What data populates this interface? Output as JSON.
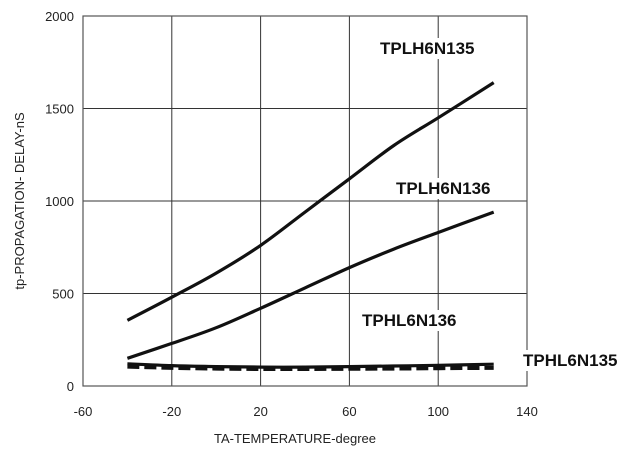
{
  "chart_data": {
    "type": "line",
    "title": "",
    "xlabel": "TA-TEMPERATURE-degree",
    "ylabel": "tp-PROPAGATION- DELAY-nS",
    "xlim": [
      -60,
      140
    ],
    "ylim": [
      0,
      2000
    ],
    "xticks": [
      -60,
      -20,
      20,
      60,
      100,
      140
    ],
    "yticks": [
      0,
      500,
      1000,
      1500,
      2000
    ],
    "grid": true,
    "series": [
      {
        "name": "TPLH6N135",
        "style": "solid",
        "color": "#111111",
        "x": [
          -40,
          -20,
          0,
          20,
          40,
          60,
          80,
          100,
          125
        ],
        "y": [
          355,
          480,
          610,
          760,
          940,
          1120,
          1300,
          1450,
          1640
        ]
      },
      {
        "name": "TPLH6N136",
        "style": "solid",
        "color": "#111111",
        "x": [
          -40,
          -20,
          0,
          20,
          40,
          60,
          80,
          100,
          125
        ],
        "y": [
          150,
          230,
          315,
          420,
          530,
          640,
          740,
          830,
          940
        ]
      },
      {
        "name": "TPHL6N136",
        "style": "solid",
        "color": "#111111",
        "x": [
          -40,
          -20,
          0,
          20,
          40,
          60,
          80,
          100,
          125
        ],
        "y": [
          120,
          110,
          105,
          102,
          102,
          105,
          108,
          112,
          118
        ]
      },
      {
        "name": "TPHL6N135",
        "style": "dashed",
        "color": "#111111",
        "x": [
          -40,
          -20,
          0,
          20,
          40,
          60,
          80,
          100,
          125
        ],
        "y": [
          105,
          98,
          94,
          92,
          92,
          93,
          94,
          96,
          98
        ]
      }
    ]
  }
}
